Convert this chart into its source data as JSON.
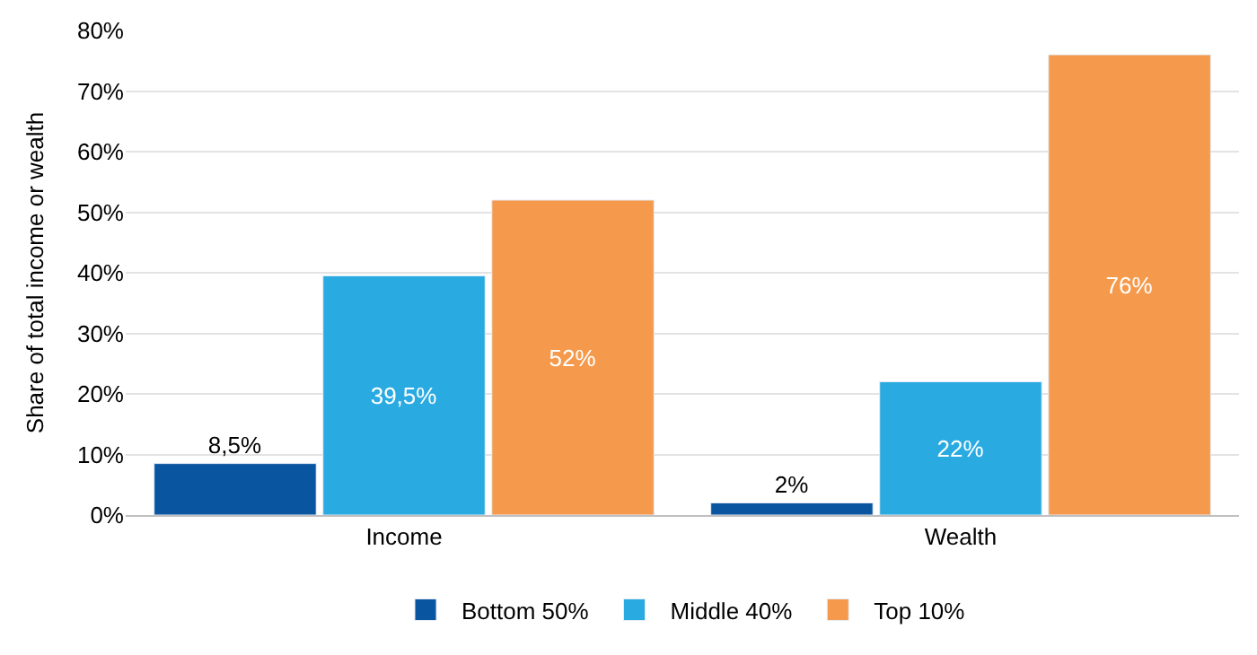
{
  "chart_data": {
    "type": "bar",
    "ylabel": "Share of total income or wealth",
    "categories": [
      "Income",
      "Wealth"
    ],
    "series": [
      {
        "name": "Bottom 50%",
        "color": "#0a55a0",
        "values": [
          8.5,
          2
        ],
        "value_labels": [
          "8,5%",
          "2%"
        ]
      },
      {
        "name": "Middle 40%",
        "color": "#29abe2",
        "values": [
          39.5,
          22
        ],
        "value_labels": [
          "39,5%",
          "22%"
        ]
      },
      {
        "name": "Top 10%",
        "color": "#f59a4c",
        "values": [
          52,
          76
        ],
        "value_labels": [
          "52%",
          "76%"
        ]
      }
    ],
    "ylim": [
      0,
      80
    ],
    "yticks": [
      {
        "value": 0,
        "label": "0%"
      },
      {
        "value": 10,
        "label": "10%"
      },
      {
        "value": 20,
        "label": "20%"
      },
      {
        "value": 30,
        "label": "30%"
      },
      {
        "value": 40,
        "label": "40%"
      },
      {
        "value": 50,
        "label": "50%"
      },
      {
        "value": 60,
        "label": "60%"
      },
      {
        "value": 70,
        "label": "70%"
      },
      {
        "value": 80,
        "label": "80%"
      }
    ],
    "grid": "y",
    "legend": "bottom"
  }
}
